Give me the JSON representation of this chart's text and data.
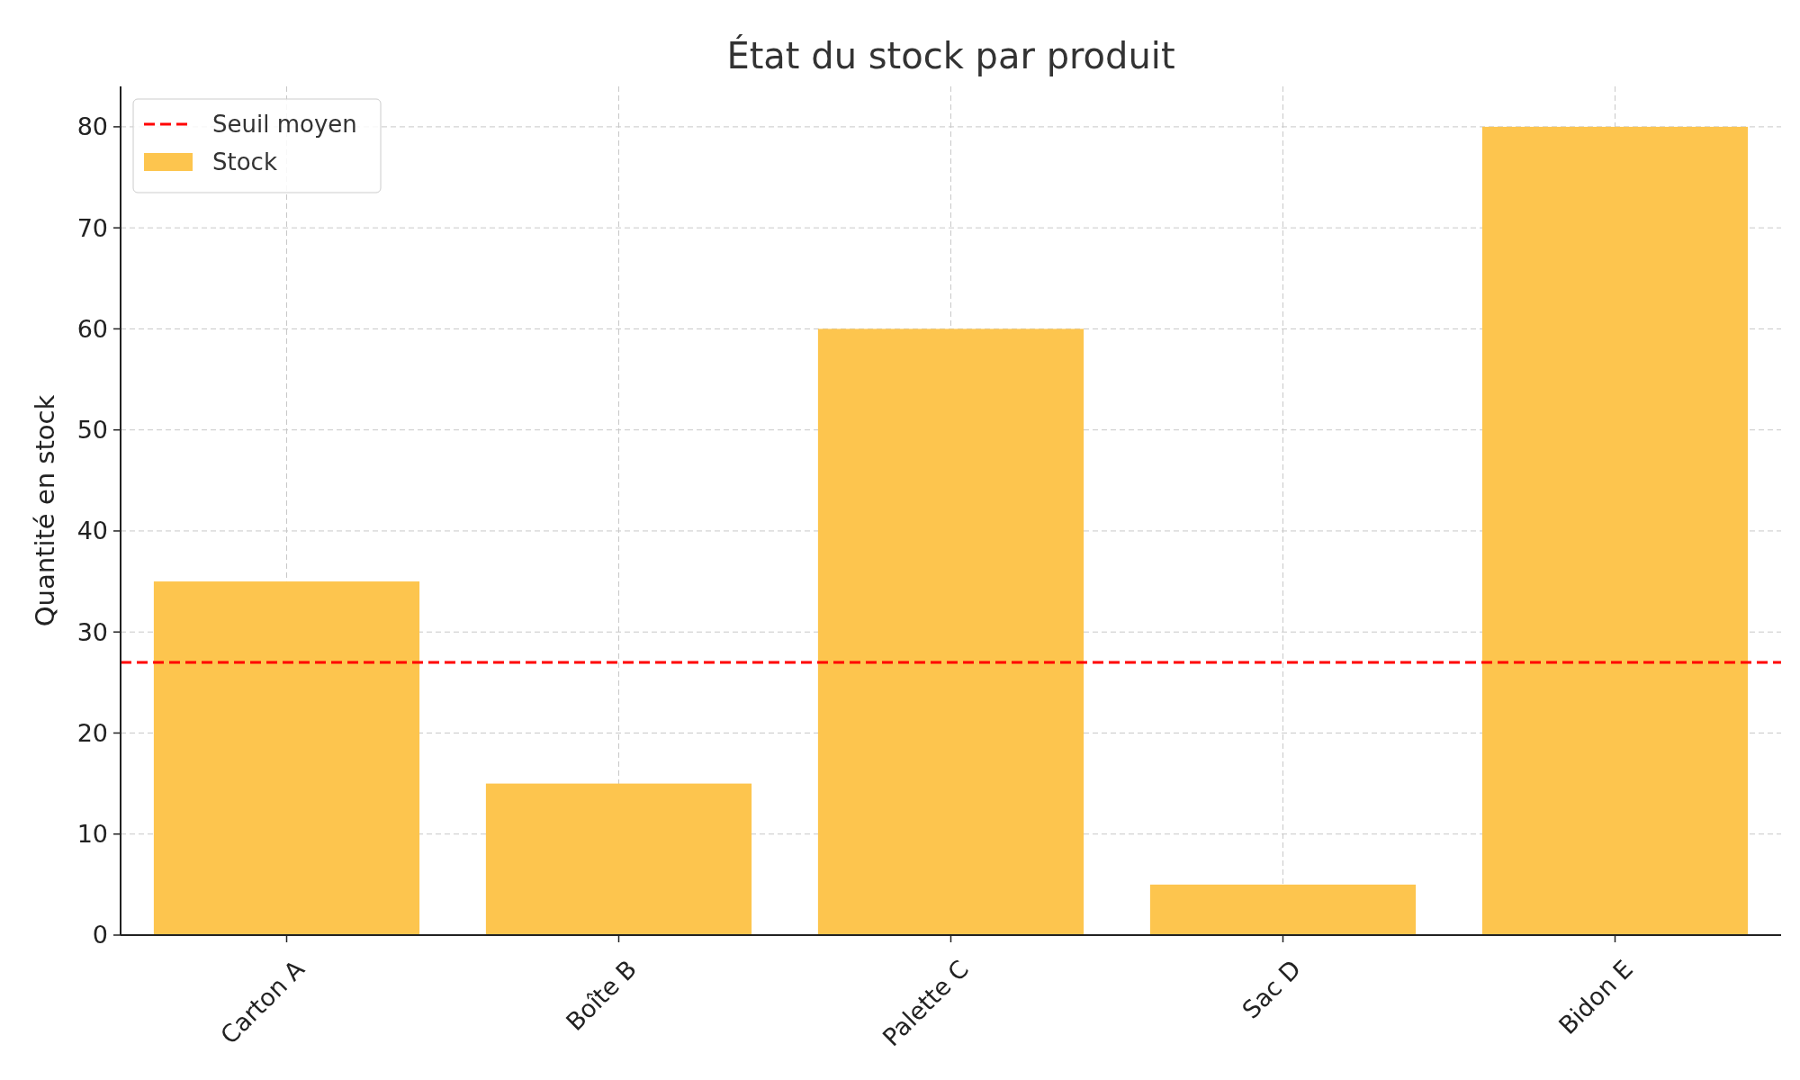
{
  "chart_data": {
    "type": "bar",
    "title": "État du stock par produit",
    "ylabel": "Quantité en stock",
    "categories": [
      "Carton A",
      "Boîte B",
      "Palette C",
      "Sac D",
      "Bidon E"
    ],
    "series": [
      {
        "name": "Stock",
        "color": "#fdc54e",
        "values": [
          35,
          15,
          60,
          5,
          80
        ]
      }
    ],
    "ylim": [
      0,
      84
    ],
    "yticks": [
      0,
      10,
      20,
      30,
      40,
      50,
      60,
      70,
      80
    ],
    "grid": true,
    "legend": "top left",
    "ref_lines": [
      {
        "axis": "y",
        "value": 27,
        "label": "Seuil moyen",
        "color": "#ff0000",
        "line_style": "dashed"
      }
    ]
  }
}
